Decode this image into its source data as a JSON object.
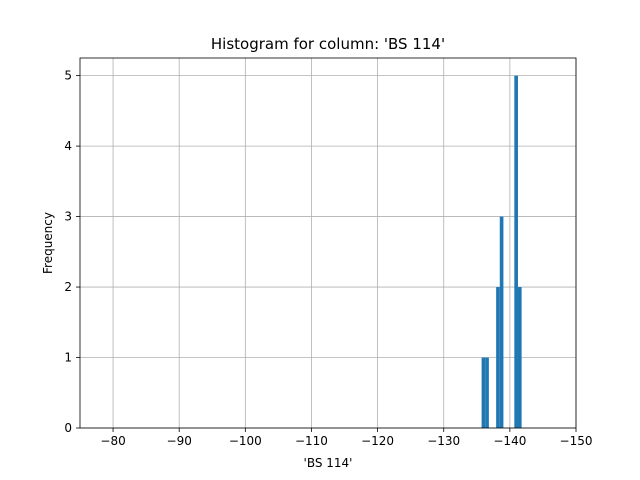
{
  "chart_data": {
    "type": "bar",
    "title": "Histogram for column: 'BS 114'",
    "xlabel": "'BS 114'",
    "ylabel": "Frequency",
    "xlim": [
      -75,
      -150
    ],
    "ylim": [
      0,
      5.25
    ],
    "x_inverted": true,
    "grid": true,
    "x_ticks": [
      -80,
      -90,
      -100,
      -110,
      -120,
      -130,
      -140,
      -150
    ],
    "x_tick_labels": [
      "−80",
      "−90",
      "−100",
      "−110",
      "−120",
      "−130",
      "−140",
      "−150"
    ],
    "y_ticks": [
      0,
      1,
      2,
      3,
      4,
      5
    ],
    "y_tick_labels": [
      "0",
      "1",
      "2",
      "3",
      "4",
      "5"
    ],
    "bin_width": 0.55,
    "bars": [
      {
        "x": -136.0,
        "count": 1
      },
      {
        "x": -136.55,
        "count": 1
      },
      {
        "x": -138.2,
        "count": 2
      },
      {
        "x": -138.75,
        "count": 3
      },
      {
        "x": -140.95,
        "count": 5
      },
      {
        "x": -141.5,
        "count": 2
      }
    ],
    "bar_color": "#1f77b4"
  }
}
